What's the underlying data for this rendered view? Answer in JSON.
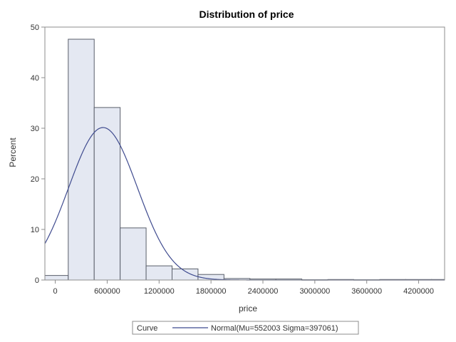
{
  "chart_data": {
    "type": "bar",
    "title": "Distribution of price",
    "xlabel": "price",
    "ylabel": "Percent",
    "xlim": [
      -120000,
      4500000
    ],
    "ylim": [
      0,
      50
    ],
    "x_ticks": [
      0,
      600000,
      1200000,
      1800000,
      2400000,
      3000000,
      3600000,
      4200000
    ],
    "x_tick_labels": [
      "0",
      "600000",
      "1200000",
      "1800000",
      "2400000",
      "3000000",
      "3600000",
      "4200000"
    ],
    "y_ticks": [
      0,
      10,
      20,
      30,
      40,
      50
    ],
    "y_tick_labels": [
      "0",
      "10",
      "20",
      "30",
      "40",
      "50"
    ],
    "bin_width": 300000,
    "bin_midpoints": [
      0,
      300000,
      600000,
      900000,
      1200000,
      1500000,
      1800000,
      2100000,
      2400000,
      2700000,
      3000000,
      3300000,
      3600000,
      3900000,
      4200000,
      4500000
    ],
    "values": [
      0.9,
      47.6,
      34.1,
      10.3,
      2.8,
      2.2,
      1.1,
      0.3,
      0.2,
      0.2,
      0.05,
      0.1,
      0.05,
      0.1,
      0.1,
      0.1
    ],
    "series": [
      {
        "name": "Normal(Mu=552003 Sigma=397061)",
        "kind": "normal-curve",
        "mu": 552003,
        "sigma": 397061
      }
    ],
    "legend": {
      "label": "Curve",
      "entry": "Normal(Mu=552003 Sigma=397061)",
      "placement": "bottom"
    },
    "grid": false,
    "colors": {
      "bar_fill": "#e4e8f2",
      "bar_stroke": "#5a5f6b",
      "curve": "#3f4b8f",
      "frame": "#8c8c8c"
    }
  }
}
